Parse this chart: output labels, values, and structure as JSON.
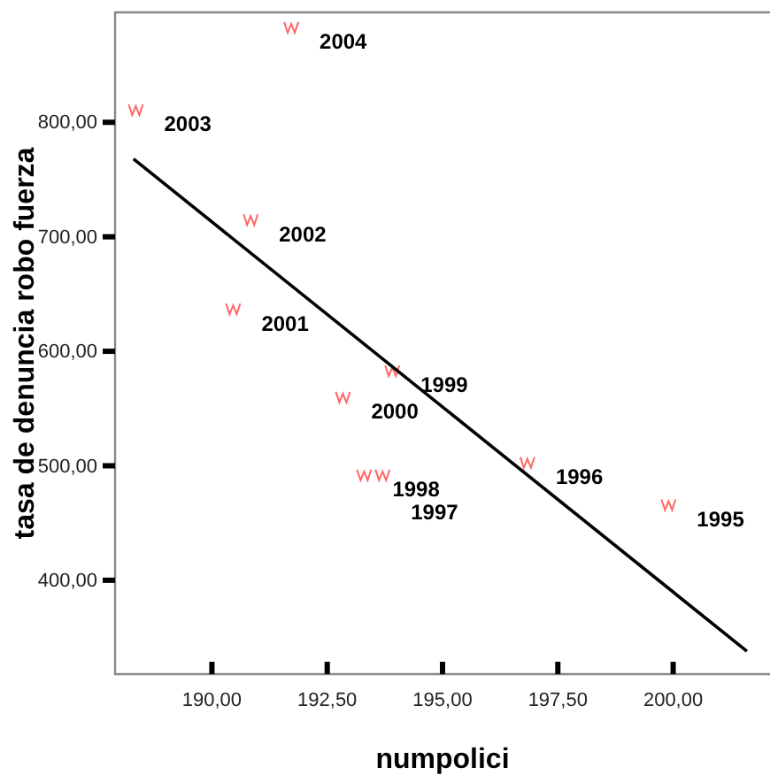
{
  "chart_data": {
    "type": "scatter",
    "xlabel": "numpolici",
    "ylabel": "tasa de denuncia robo fuerza",
    "xlim": [
      187.9,
      202.1
    ],
    "ylim": [
      318,
      896
    ],
    "xticks": [
      {
        "value": 190,
        "label": "190,00"
      },
      {
        "value": 192.5,
        "label": "192,50"
      },
      {
        "value": 195,
        "label": "195,00"
      },
      {
        "value": 197.5,
        "label": "197,50"
      },
      {
        "value": 200,
        "label": "200,00"
      }
    ],
    "yticks": [
      {
        "value": 400,
        "label": "400,00"
      },
      {
        "value": 500,
        "label": "500,00"
      },
      {
        "value": 600,
        "label": "600,00"
      },
      {
        "value": 700,
        "label": "700,00"
      },
      {
        "value": 800,
        "label": "800,00"
      }
    ],
    "grid": false,
    "series": [
      {
        "color": "#ff6666",
        "x": [
          191.72,
          188.35,
          190.84,
          190.46,
          193.91,
          192.84,
          193.3,
          193.7,
          196.84,
          199.9
        ],
        "values": [
          883,
          811,
          715,
          637,
          583,
          560,
          492,
          492,
          503,
          466
        ]
      },
      {
        "type": "line",
        "color": "#000000",
        "x": [
          188.3,
          201.6
        ],
        "values": [
          768,
          338
        ]
      }
    ],
    "annotations": [
      {
        "text": "2004",
        "x": 191.72,
        "y": 883
      },
      {
        "text": "2003",
        "x": 188.35,
        "y": 811
      },
      {
        "text": "2002",
        "x": 190.84,
        "y": 715
      },
      {
        "text": "2001",
        "x": 190.46,
        "y": 637
      },
      {
        "text": "1999",
        "x": 193.91,
        "y": 583
      },
      {
        "text": "2000",
        "x": 192.84,
        "y": 560
      },
      {
        "text": "1998",
        "x": 193.3,
        "y": 492
      },
      {
        "text": "1997",
        "x": 193.7,
        "y": 492
      },
      {
        "text": "1996",
        "x": 196.84,
        "y": 503
      },
      {
        "text": "1995",
        "x": 199.9,
        "y": 466
      }
    ]
  }
}
